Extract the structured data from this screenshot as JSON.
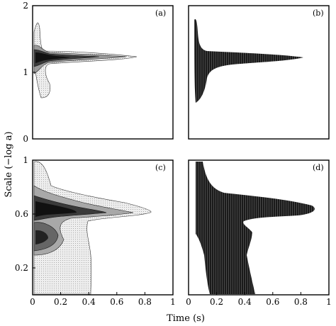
{
  "chart_data": [
    {
      "type": "contour",
      "panel_label": "(a)",
      "style": "contour",
      "xlim": [
        0,
        1
      ],
      "ylim": [
        0,
        2
      ],
      "xticks": [],
      "yticks": [
        "0",
        "1",
        "2"
      ],
      "ridges": [
        {
          "y": 1.25,
          "x_start": 0.0,
          "x_end": 0.75,
          "depth": 1.0
        },
        {
          "y": 0.9,
          "x_start": 0.0,
          "x_end": 0.08,
          "depth": 0.5
        }
      ]
    },
    {
      "type": "contour",
      "panel_label": "(b)",
      "style": "hatched",
      "xlim": [
        0,
        1
      ],
      "ylim": [
        0,
        2
      ],
      "xticks": [],
      "yticks": [],
      "ridges": [
        {
          "y": 1.25,
          "x_start": 0.0,
          "x_end": 0.82,
          "depth": 1.0
        }
      ]
    },
    {
      "type": "contour",
      "panel_label": "(c)",
      "style": "contour",
      "xlim": [
        0,
        1
      ],
      "ylim": [
        0,
        1
      ],
      "xticks": [
        "0",
        "0.2",
        "0.4",
        "0.6",
        "0.8",
        "1"
      ],
      "yticks": [
        "0.2",
        "0.6",
        "1"
      ],
      "ridges": [
        {
          "y": 0.65,
          "x_start": 0.0,
          "x_end": 0.85,
          "depth": 1.0
        },
        {
          "y": 0.42,
          "x_start": 0.0,
          "x_end": 0.35,
          "depth": 0.8
        }
      ]
    },
    {
      "type": "contour",
      "panel_label": "(d)",
      "style": "hatched",
      "xlim": [
        0,
        1
      ],
      "ylim": [
        0,
        1
      ],
      "xticks": [
        "0",
        "0.2",
        "0.4",
        "0.6",
        "0.8",
        "1"
      ],
      "yticks": [],
      "ridges": [
        {
          "y": 0.65,
          "x_start": 0.0,
          "x_end": 0.9,
          "depth": 1.0
        },
        {
          "y": 0.3,
          "x_start": 0.0,
          "x_end": 0.45,
          "depth": 0.9
        }
      ]
    }
  ],
  "axes": {
    "ylabel": "Scale (−log a)",
    "xlabel": "Time (s)"
  },
  "colors": {
    "dark": "#111111",
    "light": "#d8d8d8",
    "frame": "#000000"
  }
}
